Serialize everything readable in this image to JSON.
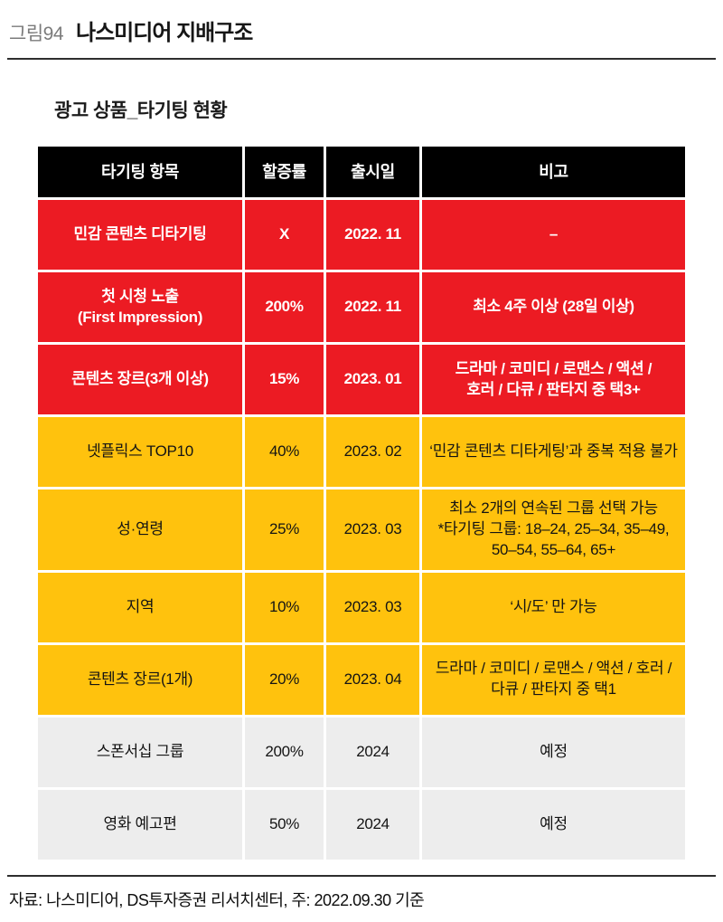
{
  "figure": {
    "label": "그림94",
    "title": "나스미디어 지배구조"
  },
  "section_title": "광고 상품_타기팅 현황",
  "table": {
    "headers": [
      "타기팅 항목",
      "할증률",
      "출시일",
      "비고"
    ],
    "rows": [
      {
        "tone": "red",
        "cells": [
          "민감 콘텐츠 디타기팅",
          "X",
          "2022. 11",
          "–"
        ]
      },
      {
        "tone": "red",
        "cells": [
          "첫 시청 노출\n(First Impression)",
          "200%",
          "2022. 11",
          "최소 4주 이상 (28일 이상)"
        ]
      },
      {
        "tone": "red",
        "cells": [
          "콘텐츠 장르(3개 이상)",
          "15%",
          "2023. 01",
          "드라마 / 코미디 / 로맨스 / 액션 /\n호러 / 다큐 / 판타지 중 택3+"
        ]
      },
      {
        "tone": "yellow",
        "cells": [
          "넷플릭스 TOP10",
          "40%",
          "2023. 02",
          "‘민감 콘텐츠 디타게팅’과 중복 적용 불가"
        ]
      },
      {
        "tone": "yellow",
        "cells": [
          "성·연령",
          "25%",
          "2023. 03",
          "최소 2개의 연속된 그룹 선택 가능\n*타기팅 그룹: 18–24, 25–34, 35–49,\n50–54, 55–64, 65+"
        ]
      },
      {
        "tone": "yellow",
        "cells": [
          "지역",
          "10%",
          "2023. 03",
          "‘시/도’ 만 가능"
        ]
      },
      {
        "tone": "yellow",
        "cells": [
          "콘텐츠 장르(1개)",
          "20%",
          "2023. 04",
          "드라마 / 코미디 / 로맨스 / 액션 / 호러 /\n다큐 / 판타지 중 택1"
        ]
      },
      {
        "tone": "gray",
        "cells": [
          "스폰서십 그룹",
          "200%",
          "2024",
          "예정"
        ]
      },
      {
        "tone": "gray",
        "cells": [
          "영화 예고편",
          "50%",
          "2024",
          "예정"
        ]
      }
    ]
  },
  "footer": {
    "source": "자료: 나스미디어, DS투자증권 리서치센터, 주: 2022.09.30 기준"
  },
  "colors": {
    "header_bg": "#000000",
    "red_row_bg": "#EC1B23",
    "yellow_row_bg": "#FFC20D",
    "gray_row_bg": "#EDEDED",
    "rule": "#2E2E2E"
  }
}
